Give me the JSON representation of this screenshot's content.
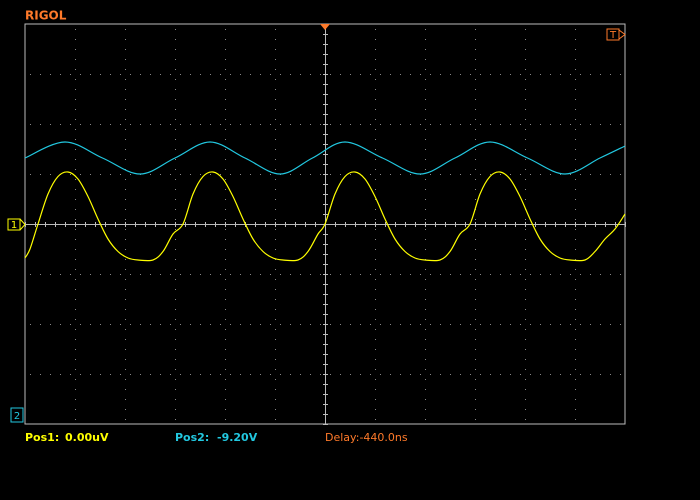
{
  "brand": "RIGOL",
  "markers": {
    "trigger": "T",
    "channel1": "1",
    "channel2": "2"
  },
  "status": {
    "pos1_label": "Pos1:",
    "pos1_value": "0.00uV",
    "pos2_label": "Pos2:",
    "pos2_value": "-9.20V",
    "delay": "Delay:-440.0ns"
  },
  "chart_data": {
    "type": "line",
    "xlim": [
      0,
      12
    ],
    "ylim": [
      -4,
      4
    ],
    "grid": true,
    "series": [
      {
        "color": "#ffff00",
        "x": [
          0,
          0.1,
          0.26,
          0.46,
          0.66,
          0.86,
          1.06,
          1.26,
          1.46,
          1.66,
          1.86,
          2.06,
          2.26,
          2.56,
          2.76,
          2.96,
          3.16,
          3.36,
          3.56,
          3.76,
          3.96,
          4.16,
          4.36,
          4.56,
          4.76,
          4.96,
          5.16,
          5.46,
          5.66,
          5.86,
          6.0,
          6.2,
          6.4,
          6.6,
          6.8,
          7.0,
          7.2,
          7.4,
          7.6,
          7.8,
          8.0,
          8.3,
          8.5,
          8.7,
          8.9,
          9.1,
          9.3,
          9.5,
          9.7,
          9.9,
          10.1,
          10.3,
          10.5,
          10.7,
          10.9,
          11.2,
          11.4,
          11.6,
          11.8,
          12.0
        ],
        "values": [
          -0.68,
          -0.5,
          0,
          0.6,
          0.95,
          1.04,
          0.9,
          0.55,
          0.1,
          -0.3,
          -0.55,
          -0.68,
          -0.72,
          -0.72,
          -0.55,
          -0.2,
          0,
          0.6,
          0.95,
          1.04,
          0.9,
          0.55,
          0.1,
          -0.3,
          -0.55,
          -0.68,
          -0.72,
          -0.72,
          -0.55,
          -0.2,
          0,
          0.6,
          0.95,
          1.04,
          0.9,
          0.55,
          0.1,
          -0.3,
          -0.55,
          -0.68,
          -0.72,
          -0.72,
          -0.55,
          -0.2,
          0,
          0.6,
          0.95,
          1.04,
          0.9,
          0.55,
          0.1,
          -0.3,
          -0.55,
          -0.68,
          -0.72,
          -0.72,
          -0.55,
          -0.3,
          -0.1,
          0.2
        ]
      },
      {
        "color": "#22c8e0",
        "x": [
          0,
          0.8,
          1.55,
          2.3,
          3.0,
          3.7,
          4.4,
          5.1,
          5.75,
          6.4,
          7.15,
          7.9,
          8.6,
          9.3,
          10.05,
          10.8,
          11.5,
          12
        ],
        "values": [
          1.32,
          1.64,
          1.32,
          1.0,
          1.32,
          1.64,
          1.32,
          1.0,
          1.32,
          1.64,
          1.32,
          1.0,
          1.32,
          1.64,
          1.32,
          1.0,
          1.32,
          1.56
        ]
      }
    ]
  }
}
